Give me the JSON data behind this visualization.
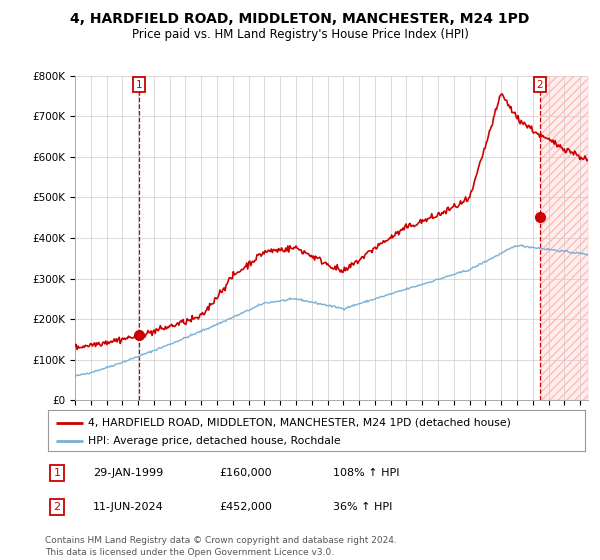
{
  "title": "4, HARDFIELD ROAD, MIDDLETON, MANCHESTER, M24 1PD",
  "subtitle": "Price paid vs. HM Land Registry's House Price Index (HPI)",
  "ylim": [
    0,
    800000
  ],
  "yticks": [
    0,
    100000,
    200000,
    300000,
    400000,
    500000,
    600000,
    700000,
    800000
  ],
  "ytick_labels": [
    "£0",
    "£100K",
    "£200K",
    "£300K",
    "£400K",
    "£500K",
    "£600K",
    "£700K",
    "£800K"
  ],
  "xlim_start": 1995.0,
  "xlim_end": 2027.5,
  "hpi_color": "#7ab0d4",
  "property_color": "#cc0000",
  "point1_year": 1999.08,
  "point1_value": 160000,
  "point2_year": 2024.44,
  "point2_value": 452000,
  "legend_property": "4, HARDFIELD ROAD, MIDDLETON, MANCHESTER, M24 1PD (detached house)",
  "legend_hpi": "HPI: Average price, detached house, Rochdale",
  "annotation1_label": "1",
  "annotation1_date": "29-JAN-1999",
  "annotation1_price": "£160,000",
  "annotation1_hpi": "108% ↑ HPI",
  "annotation2_label": "2",
  "annotation2_date": "11-JUN-2024",
  "annotation2_price": "£452,000",
  "annotation2_hpi": "36% ↑ HPI",
  "footer": "Contains HM Land Registry data © Crown copyright and database right 2024.\nThis data is licensed under the Open Government Licence v3.0.",
  "background_color": "#ffffff",
  "grid_color": "#cccccc",
  "title_fontsize": 10,
  "subtitle_fontsize": 8.5,
  "tick_fontsize": 7.5,
  "legend_fontsize": 8
}
